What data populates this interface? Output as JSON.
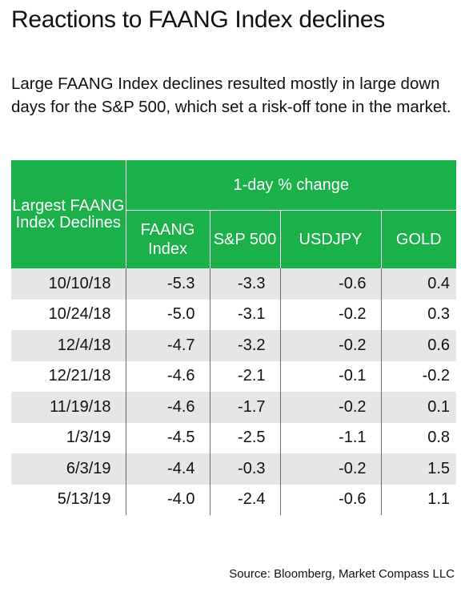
{
  "title": "Reactions to FAANG Index declines",
  "subtitle": "Large FAANG Index declines resulted mostly in large down days for the S&P 500, which set a risk-off tone in the market.",
  "source": "Source: Bloomberg, Market Compass LLC",
  "colors": {
    "header": "#1bb04a",
    "shade": "#e6e6e6",
    "text": "#111111"
  },
  "chart_data": {
    "type": "table",
    "row_header_label": "Largest FAANG Index Declines",
    "group_label": "1-day % change",
    "columns": [
      "FAANG Index",
      "S&P 500",
      "USDJPY",
      "GOLD"
    ],
    "rows": [
      {
        "date": "10/10/18",
        "values": [
          "-5.3",
          "-3.3",
          "-0.6",
          "0.4"
        ]
      },
      {
        "date": "10/24/18",
        "values": [
          "-5.0",
          "-3.1",
          "-0.2",
          "0.3"
        ]
      },
      {
        "date": "12/4/18",
        "values": [
          "-4.7",
          "-3.2",
          "-0.2",
          "0.6"
        ]
      },
      {
        "date": "12/21/18",
        "values": [
          "-4.6",
          "-2.1",
          "-0.1",
          "-0.2"
        ]
      },
      {
        "date": "11/19/18",
        "values": [
          "-4.6",
          "-1.7",
          "-0.2",
          "0.1"
        ]
      },
      {
        "date": "1/3/19",
        "values": [
          "-4.5",
          "-2.5",
          "-1.1",
          "0.8"
        ]
      },
      {
        "date": "6/3/19",
        "values": [
          "-4.4",
          "-0.3",
          "-0.2",
          "1.5"
        ]
      },
      {
        "date": "5/13/19",
        "values": [
          "-4.0",
          "-2.4",
          "-0.6",
          "1.1"
        ]
      }
    ]
  }
}
